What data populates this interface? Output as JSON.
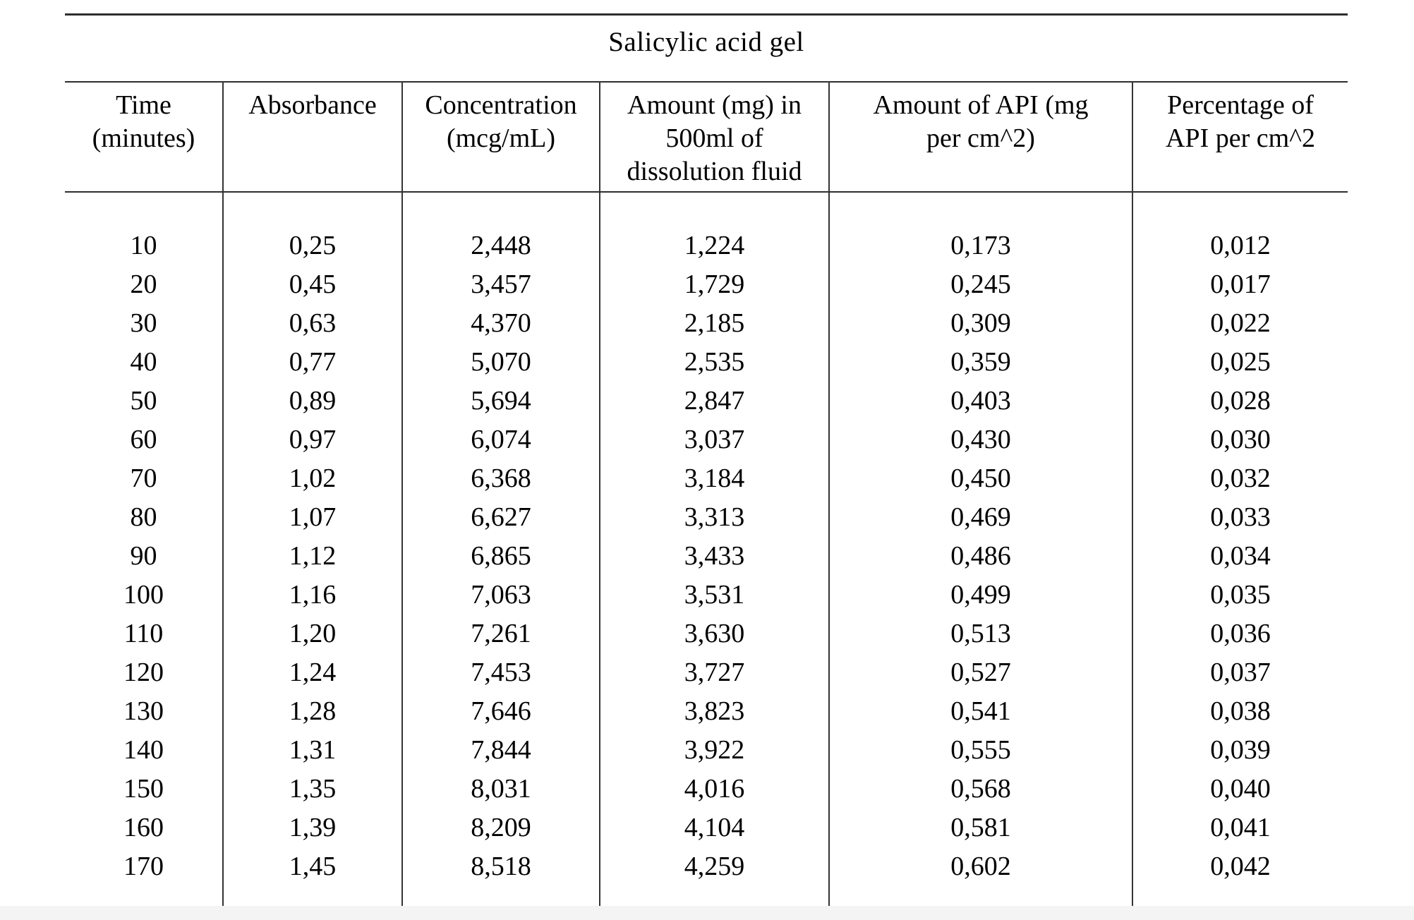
{
  "title": "Salicylic acid gel",
  "table": {
    "headers": [
      "Time\n(minutes)",
      "Absorbance",
      "Concentration\n(mcg/mL)",
      "Amount (mg) in\n500ml of\ndissolution fluid",
      "Amount of API (mg\nper cm^2)",
      "Percentage of\nAPI per cm^2"
    ],
    "rows": [
      [
        "10",
        "0,25",
        "2,448",
        "1,224",
        "0,173",
        "0,012"
      ],
      [
        "20",
        "0,45",
        "3,457",
        "1,729",
        "0,245",
        "0,017"
      ],
      [
        "30",
        "0,63",
        "4,370",
        "2,185",
        "0,309",
        "0,022"
      ],
      [
        "40",
        "0,77",
        "5,070",
        "2,535",
        "0,359",
        "0,025"
      ],
      [
        "50",
        "0,89",
        "5,694",
        "2,847",
        "0,403",
        "0,028"
      ],
      [
        "60",
        "0,97",
        "6,074",
        "3,037",
        "0,430",
        "0,030"
      ],
      [
        "70",
        "1,02",
        "6,368",
        "3,184",
        "0,450",
        "0,032"
      ],
      [
        "80",
        "1,07",
        "6,627",
        "3,313",
        "0,469",
        "0,033"
      ],
      [
        "90",
        "1,12",
        "6,865",
        "3,433",
        "0,486",
        "0,034"
      ],
      [
        "100",
        "1,16",
        "7,063",
        "3,531",
        "0,499",
        "0,035"
      ],
      [
        "110",
        "1,20",
        "7,261",
        "3,630",
        "0,513",
        "0,036"
      ],
      [
        "120",
        "1,24",
        "7,453",
        "3,727",
        "0,527",
        "0,037"
      ],
      [
        "130",
        "1,28",
        "7,646",
        "3,823",
        "0,541",
        "0,038"
      ],
      [
        "140",
        "1,31",
        "7,844",
        "3,922",
        "0,555",
        "0,039"
      ],
      [
        "150",
        "1,35",
        "8,031",
        "4,016",
        "0,568",
        "0,040"
      ],
      [
        "160",
        "1,39",
        "8,209",
        "4,104",
        "0,581",
        "0,041"
      ],
      [
        "170",
        "1,45",
        "8,518",
        "4,259",
        "0,602",
        "0,042"
      ]
    ],
    "colors": {
      "rule_heavy": "#2e2e2e",
      "rule_vertical": "#343434",
      "text": "#000000",
      "background": "#ffffff",
      "page_edge_strip": "#f4f4f4"
    }
  }
}
